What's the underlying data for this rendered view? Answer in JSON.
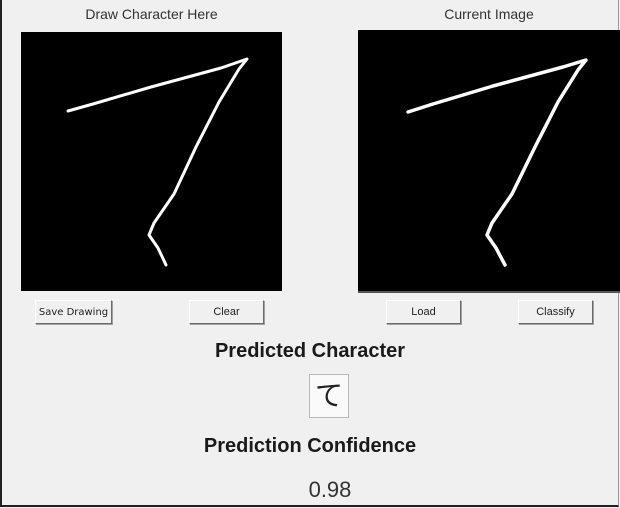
{
  "left_panel": {
    "title": "Draw Character Here"
  },
  "right_panel": {
    "title": "Current Image"
  },
  "buttons": {
    "save_drawing": "Save Drawing",
    "clear": "Clear",
    "load": "Load",
    "classify": "Classify"
  },
  "prediction": {
    "character_heading": "Predicted Character",
    "character": "て",
    "confidence_heading": "Prediction Confidence",
    "confidence": "0.98"
  },
  "colors": {
    "window_bg": "#f0f0f0",
    "canvas_bg": "#000000",
    "stroke": "#ffffff"
  }
}
